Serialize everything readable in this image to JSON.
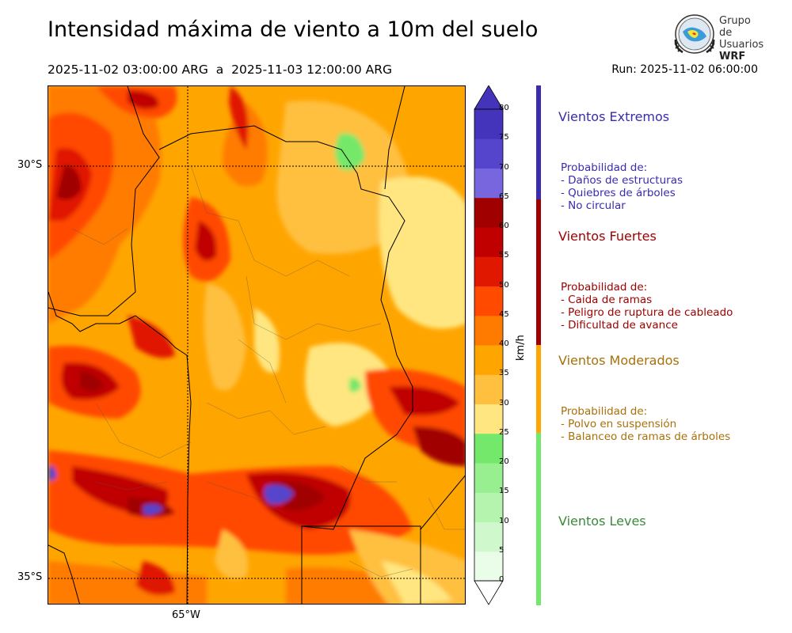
{
  "title": "Intensidad máxima de viento a 10m del suelo",
  "period": "2025-11-02 03:00:00 ARG  a  2025-11-03 12:00:00 ARG",
  "run": "Run: 2025-11-02 06:00:00",
  "logo": {
    "line1": "Grupo de",
    "line2": "Usuarios",
    "line3": "WRF"
  },
  "axes": {
    "lat_labels": [
      "30°S",
      "35°S"
    ],
    "lon_labels": [
      "65°W"
    ]
  },
  "colorbar": {
    "unit": "km/h",
    "ticks": [
      "0",
      "5",
      "10",
      "15",
      "20",
      "25",
      "30",
      "35",
      "40",
      "45",
      "50",
      "55",
      "60",
      "65",
      "70",
      "75",
      "80"
    ],
    "colors": [
      "#e9fde9",
      "#cff8cc",
      "#b4f4ae",
      "#97ef8f",
      "#74e86b",
      "#ffe680",
      "#ffc040",
      "#ffa500",
      "#ff7b00",
      "#ff4a00",
      "#e01800",
      "#c00000",
      "#a00000",
      "#7766dd",
      "#5544cc",
      "#4433bb"
    ]
  },
  "categories": [
    {
      "name": "Vientos Extremos",
      "color": "#3a2bb0",
      "lines": [
        "Probabilidad de:",
        "- Daños de estructuras",
        "- Quiebres de árboles",
        "- No circular"
      ]
    },
    {
      "name": "Vientos Fuertes",
      "color": "#a00000",
      "lines": [
        "Probabilidad de:",
        "- Caida de ramas",
        "- Peligro de ruptura de cableado",
        "- Dificultad de avance"
      ]
    },
    {
      "name": "Vientos Moderados",
      "color": "#a8700a",
      "lines": [
        "Probabilidad de:",
        "- Polvo en suspensión",
        "- Balanceo de ramas de árboles"
      ]
    },
    {
      "name": "Vientos Leves",
      "color": "#3a8a3a",
      "lines": []
    }
  ]
}
